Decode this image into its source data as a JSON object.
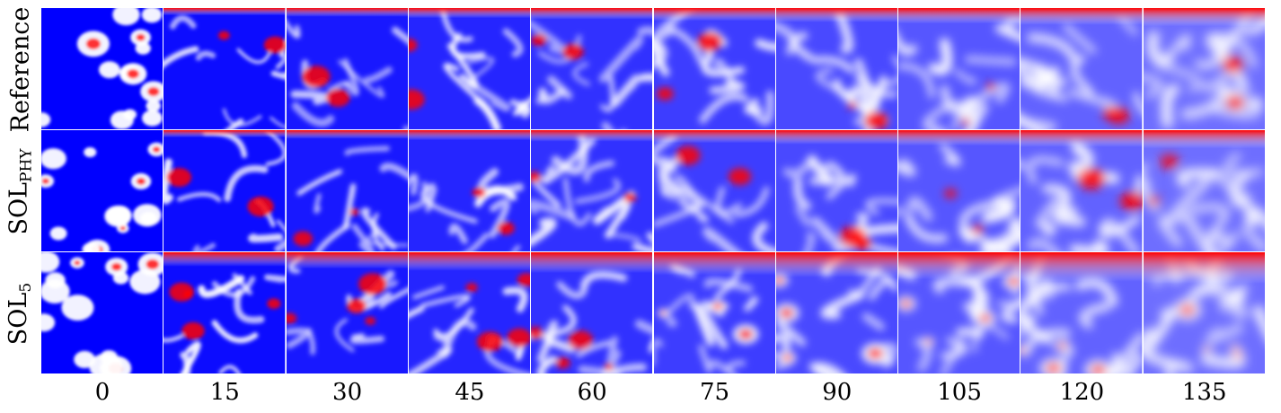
{
  "row_labels": [
    {
      "main": "Reference",
      "sub": ""
    },
    {
      "main": "SOL",
      "sub": "PHY"
    },
    {
      "main": "SOL",
      "sub": "5"
    }
  ],
  "x_labels": [
    "0",
    "15",
    "30",
    "45",
    "60",
    "75",
    "90",
    "105",
    "120",
    "135"
  ],
  "colors": {
    "cold": "#0000ff",
    "warm": "#ff0000",
    "neutral": "#ffffff"
  }
}
